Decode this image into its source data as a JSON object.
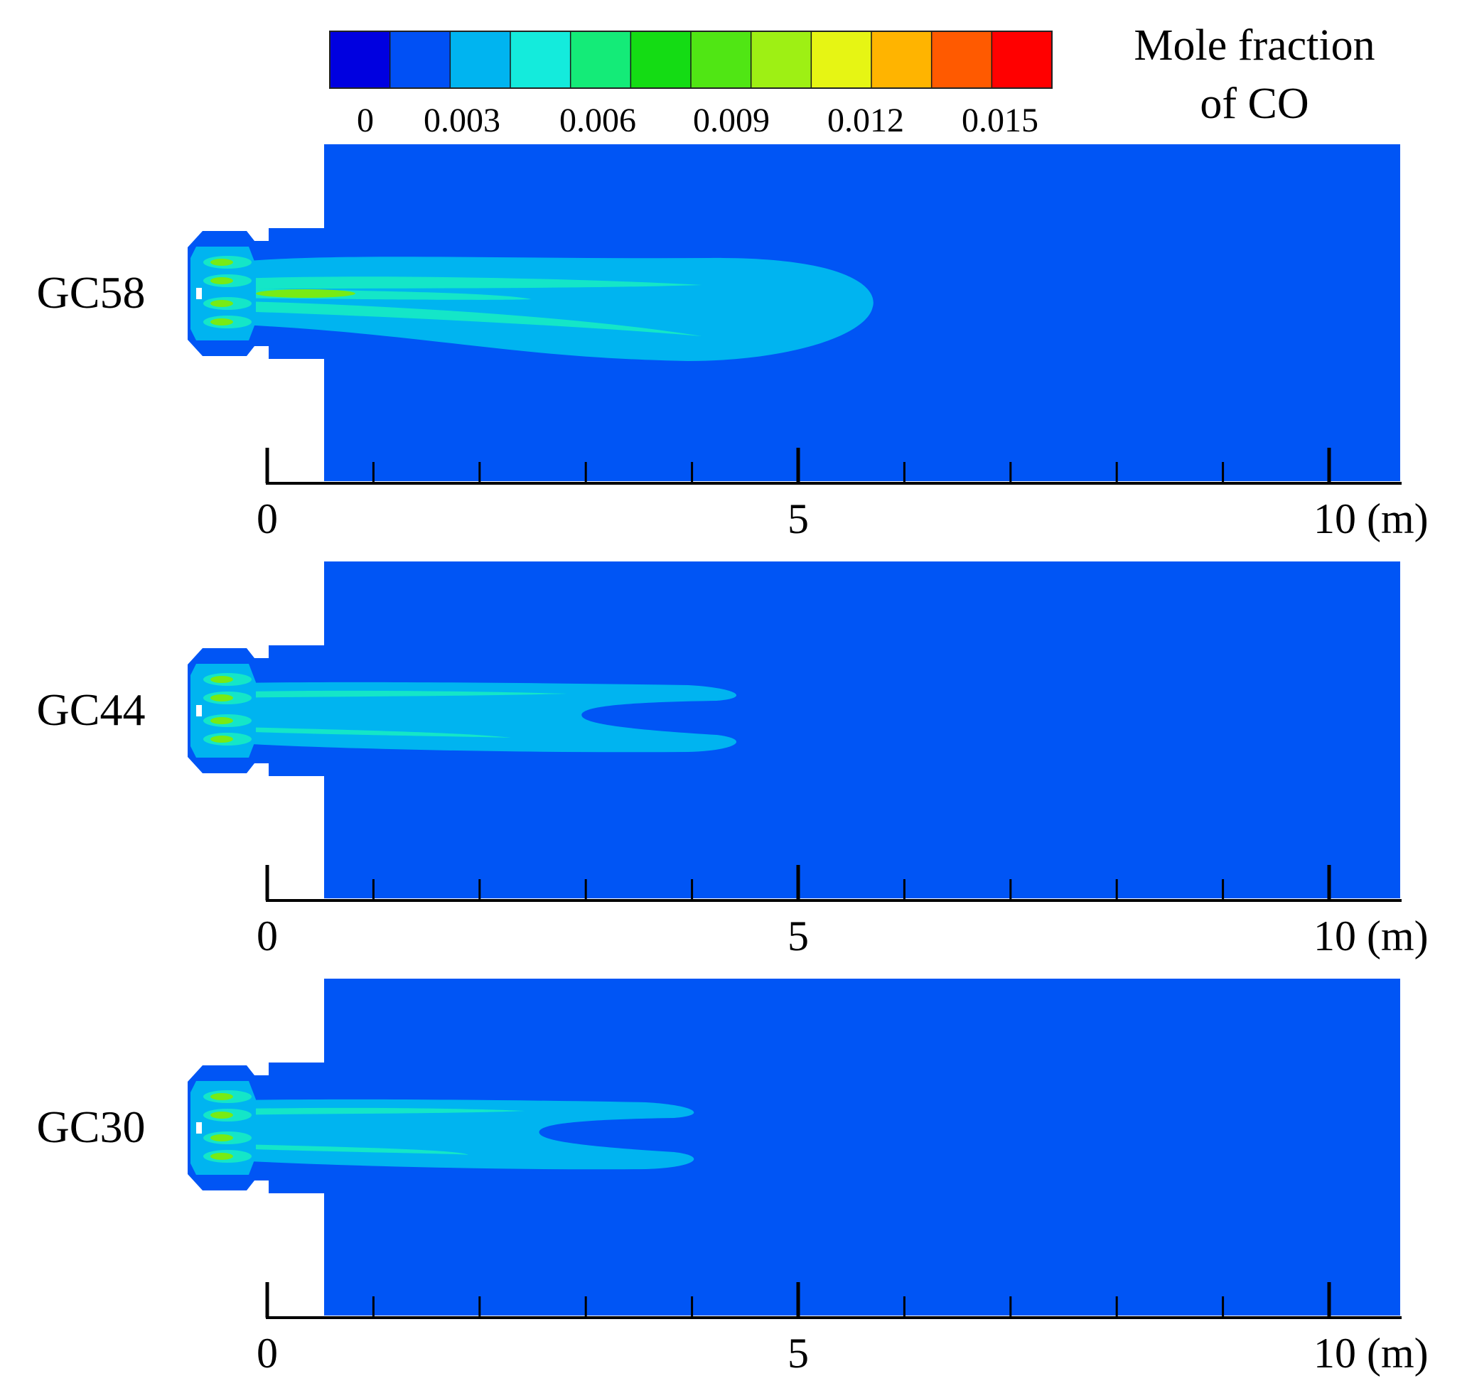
{
  "legend": {
    "title_line1": "Mole fraction",
    "title_line2": "of CO",
    "tick_labels": [
      "0",
      "0.003",
      "0.006",
      "0.009",
      "0.012",
      "0.015"
    ],
    "colors": [
      "#0000e0",
      "#0050f5",
      "#00b4f0",
      "#14ebdc",
      "#14eb78",
      "#14dc14",
      "#50e614",
      "#9ef014",
      "#e6f514",
      "#ffb400",
      "#ff5a00",
      "#ff0000"
    ]
  },
  "axis": {
    "ticks": [
      "0",
      "5",
      "10 (m)"
    ],
    "range_m": [
      0,
      10
    ],
    "minor_step_m": 1
  },
  "panels": [
    {
      "label": "GC58",
      "plume_length_m": 5.7,
      "shape": "single-plume"
    },
    {
      "label": "GC44",
      "plume_length_m": 4.5,
      "shape": "forked"
    },
    {
      "label": "GC30",
      "plume_length_m": 4.1,
      "shape": "forked"
    }
  ],
  "palette": {
    "background_field": "#0055f5",
    "plume_outer": "#00b4f0",
    "plume_streak": "#14e6c8",
    "plume_hot": "#78eb14",
    "axis": "#000000"
  }
}
